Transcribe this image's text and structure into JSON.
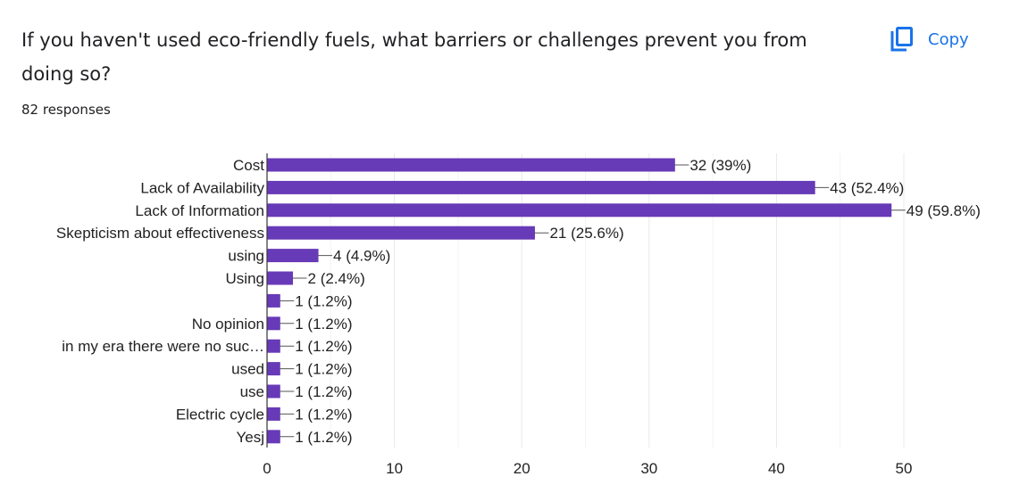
{
  "question": "If you haven't used eco-friendly fuels, what barriers or challenges prevent you from doing so?",
  "responses_text": "82 responses",
  "copy_label": "Copy",
  "copy_icon": "copy-icon",
  "colors": {
    "bar": "#673ab7",
    "accent": "#1a73e8",
    "grid": "#e8e8e8",
    "axis": "#333333",
    "text": "#222222"
  },
  "chart_data": {
    "type": "bar",
    "orientation": "horizontal",
    "title": "",
    "xlabel": "",
    "ylabel": "",
    "xlim": [
      0,
      50
    ],
    "x_ticks": [
      0,
      10,
      20,
      30,
      40,
      50
    ],
    "grid": true,
    "categories": [
      "Cost",
      "Lack of Availability",
      "Lack of Information",
      "Skepticism about effectiveness",
      "using",
      "Using",
      "",
      "No opinion",
      "in my era there were no suc…",
      "used",
      "use",
      "Electric cycle",
      "Yesj"
    ],
    "values": [
      32,
      43,
      49,
      21,
      4,
      2,
      1,
      1,
      1,
      1,
      1,
      1,
      1
    ],
    "data_labels": [
      "32 (39%)",
      "43 (52.4%)",
      "49 (59.8%)",
      "21 (25.6%)",
      "4 (4.9%)",
      "2 (2.4%)",
      "1 (1.2%)",
      "1 (1.2%)",
      "1 (1.2%)",
      "1 (1.2%)",
      "1 (1.2%)",
      "1 (1.2%)",
      "1 (1.2%)"
    ]
  }
}
